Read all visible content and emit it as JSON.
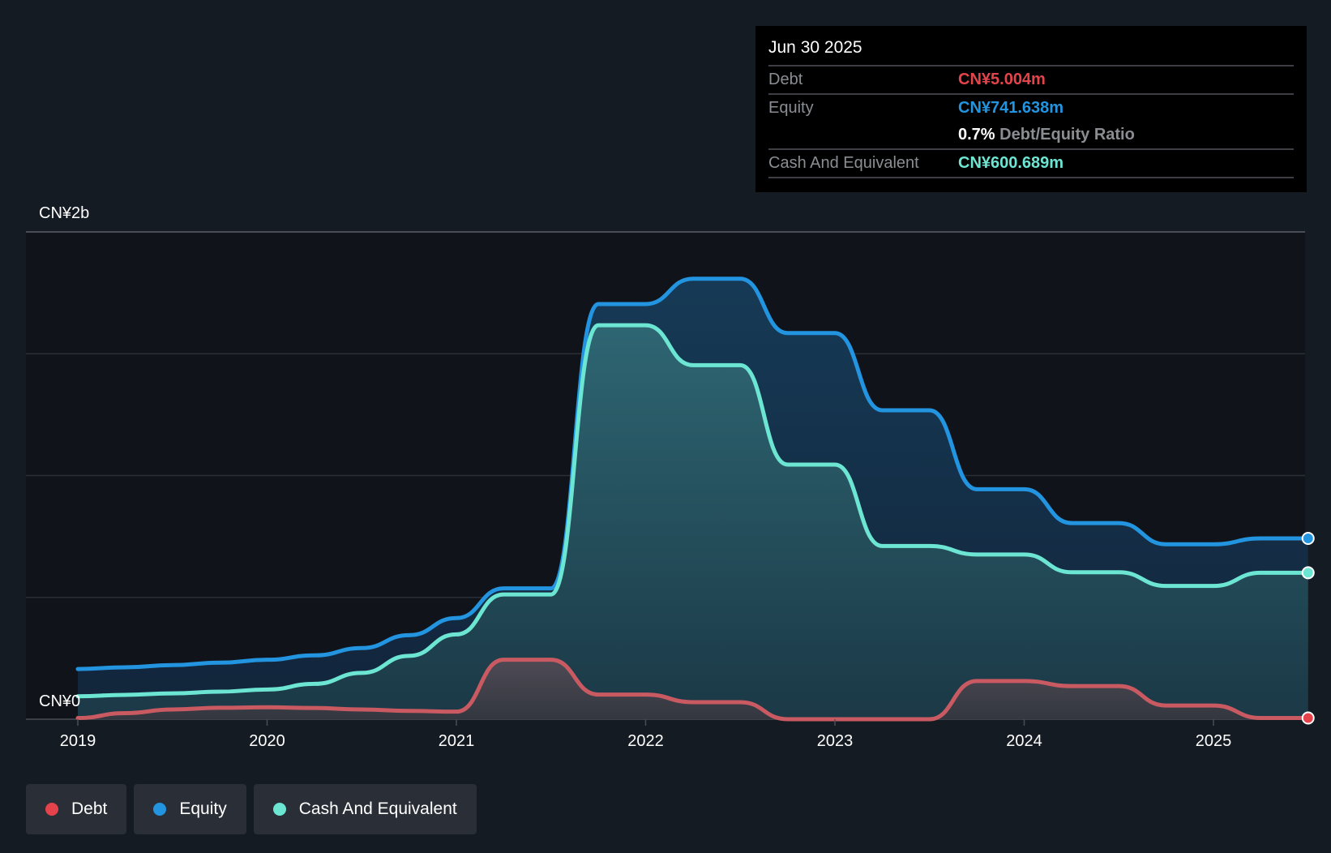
{
  "tooltip": {
    "date": "Jun 30 2025",
    "rows": [
      {
        "label": "Debt",
        "value": "CN¥5.004m",
        "color": "#e5434b"
      },
      {
        "label": "Equity",
        "value": "CN¥741.638m",
        "color": "#2394df"
      },
      {
        "label": "",
        "ratio_value": "0.7%",
        "ratio_label": "Debt/Equity Ratio"
      },
      {
        "label": "Cash And Equivalent",
        "value": "CN¥600.689m",
        "color": "#6ce5d3"
      }
    ]
  },
  "legend": [
    {
      "label": "Debt",
      "color": "#e5434b"
    },
    {
      "label": "Equity",
      "color": "#2394df"
    },
    {
      "label": "Cash And Equivalent",
      "color": "#6ce5d3"
    }
  ],
  "chart_data": {
    "type": "area",
    "title": "",
    "xlabel": "",
    "ylabel": "",
    "y_unit": "CN¥ billions",
    "ylim": [
      0,
      2
    ],
    "xlim": [
      2018.75,
      2025.5
    ],
    "ytick_labels": [
      {
        "value": 2,
        "label": "CN¥2b"
      },
      {
        "value": 0,
        "label": "CN¥0"
      }
    ],
    "gridlines_y": [
      0,
      0.5,
      1.0,
      1.5,
      2.0
    ],
    "xticks": [
      {
        "value": 2019,
        "label": "2019"
      },
      {
        "value": 2020,
        "label": "2020"
      },
      {
        "value": 2021,
        "label": "2021"
      },
      {
        "value": 2022,
        "label": "2022"
      },
      {
        "value": 2023,
        "label": "2023"
      },
      {
        "value": 2024,
        "label": "2024"
      },
      {
        "value": 2025,
        "label": "2025"
      }
    ],
    "x": [
      2019.0,
      2019.25,
      2019.5,
      2019.75,
      2020.0,
      2020.25,
      2020.5,
      2020.75,
      2021.0,
      2021.25,
      2021.5,
      2021.75,
      2022.0,
      2022.25,
      2022.5,
      2022.75,
      2023.0,
      2023.25,
      2023.5,
      2023.75,
      2024.0,
      2024.25,
      2024.5,
      2024.75,
      2025.0,
      2025.25,
      2025.5
    ],
    "series": [
      {
        "name": "Equity",
        "color": "#2394df",
        "values": [
          0.206,
          0.213,
          0.222,
          0.232,
          0.244,
          0.262,
          0.292,
          0.345,
          0.415,
          0.537,
          0.537,
          1.704,
          1.704,
          1.808,
          1.808,
          1.585,
          1.585,
          1.268,
          1.268,
          0.944,
          0.944,
          0.805,
          0.805,
          0.718,
          0.718,
          0.742,
          0.742
        ]
      },
      {
        "name": "Cash And Equivalent",
        "color": "#6ce5d3",
        "values": [
          0.094,
          0.1,
          0.106,
          0.113,
          0.122,
          0.145,
          0.19,
          0.26,
          0.348,
          0.512,
          0.512,
          1.617,
          1.617,
          1.453,
          1.453,
          1.045,
          1.045,
          0.711,
          0.711,
          0.676,
          0.676,
          0.603,
          0.603,
          0.547,
          0.547,
          0.601,
          0.601
        ]
      },
      {
        "name": "Debt",
        "color": "#e5434b",
        "values": [
          0.005,
          0.025,
          0.04,
          0.047,
          0.049,
          0.046,
          0.04,
          0.034,
          0.031,
          0.244,
          0.244,
          0.101,
          0.101,
          0.07,
          0.07,
          0.0,
          0.0,
          0.0,
          0.0,
          0.157,
          0.157,
          0.136,
          0.136,
          0.056,
          0.056,
          0.005,
          0.005
        ]
      }
    ],
    "end_values": {
      "date": "Jun 30 2025",
      "debt": 0.005004,
      "equity": 0.741638,
      "cash": 0.600689
    },
    "legend_position": "bottom-left",
    "grid": true
  }
}
